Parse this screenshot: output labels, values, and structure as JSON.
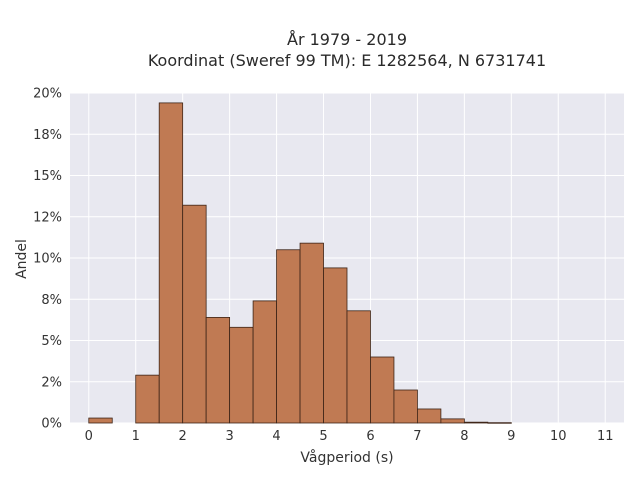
{
  "chart_data": {
    "type": "bar",
    "title_line1": "År 1979 - 2019",
    "title_line2": "Koordinat (Sweref 99 TM): E 1282564, N 6731741",
    "xlabel": "Vågperiod (s)",
    "ylabel": "Andel",
    "bin_width": 0.5,
    "bin_starts": [
      0,
      0.5,
      1,
      1.5,
      2,
      2.5,
      3,
      3.5,
      4,
      4.5,
      5,
      5.5,
      6,
      6.5,
      7,
      7.5,
      8,
      8.5
    ],
    "values": [
      0.3,
      0,
      2.9,
      19.4,
      13.2,
      6.4,
      5.8,
      7.4,
      10.5,
      10.9,
      9.4,
      6.8,
      4.0,
      2.0,
      0.85,
      0.25,
      0.05,
      0.02
    ],
    "xlim": [
      -0.4,
      11.4
    ],
    "ylim": [
      0,
      20
    ],
    "x_ticks": [
      0,
      1,
      2,
      3,
      4,
      5,
      6,
      7,
      8,
      9,
      10,
      11
    ],
    "x_tick_labels": [
      "0",
      "1",
      "2",
      "3",
      "4",
      "5",
      "6",
      "7",
      "8",
      "9",
      "10",
      "11"
    ],
    "y_ticks": [
      0,
      2.5,
      5,
      7.5,
      10,
      12.5,
      15,
      17.5,
      20
    ],
    "y_tick_labels": [
      "0%",
      "2%",
      "5%",
      "8%",
      "10%",
      "12%",
      "15%",
      "18%",
      "20%"
    ],
    "grid": true,
    "colors": {
      "bar_fill": "#c07a53",
      "bar_stroke": "#3d2417",
      "plot_background": "#e8e8f0",
      "grid": "#ffffff"
    }
  }
}
